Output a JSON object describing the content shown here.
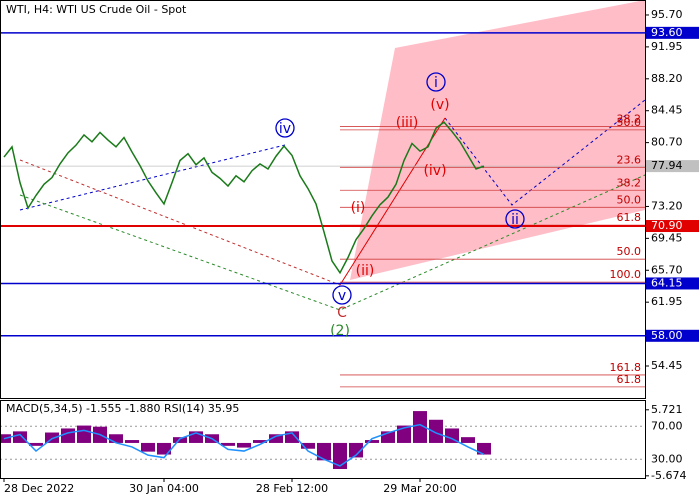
{
  "chart_data": [
    {
      "type": "line",
      "title": "WTI, H4:  WTI US Crude Oil - Spot",
      "categories": [
        "28 Dec 2022",
        null,
        null,
        null,
        null,
        null,
        null,
        null,
        null,
        null,
        null,
        null,
        null,
        null,
        null,
        null,
        null,
        null,
        null,
        null,
        "30 Jan 04:00",
        null,
        null,
        null,
        null,
        null,
        null,
        null,
        null,
        null,
        null,
        null,
        null,
        null,
        null,
        null,
        "28 Feb 12:00",
        null,
        null,
        null,
        null,
        null,
        null,
        null,
        null,
        null,
        null,
        null,
        null,
        null,
        null,
        null,
        "29 Mar 20:00",
        null,
        null,
        null,
        null,
        null,
        null,
        null,
        null
      ],
      "values": [
        79.0,
        80.2,
        76.0,
        73.0,
        74.5,
        75.8,
        76.6,
        78.2,
        79.5,
        80.4,
        81.6,
        80.8,
        81.9,
        81.0,
        80.2,
        81.3,
        79.6,
        78.0,
        76.2,
        74.8,
        73.5,
        76.0,
        78.6,
        79.4,
        78.1,
        78.9,
        77.2,
        76.5,
        75.6,
        76.8,
        76.1,
        77.4,
        78.2,
        77.6,
        79.1,
        80.3,
        79.2,
        76.8,
        75.3,
        73.5,
        70.2,
        66.8,
        65.4,
        67.2,
        69.3,
        70.6,
        72.1,
        73.4,
        74.3,
        75.8,
        78.6,
        80.6,
        79.7,
        80.2,
        82.4,
        83.1,
        82.0,
        80.8,
        79.2,
        77.6,
        77.94
      ],
      "color": "#1a7a1a",
      "ylim": [
        50.69,
        97.46
      ],
      "yticks": [
        {
          "value": 95.7,
          "label": "95.70"
        },
        {
          "value": 91.95,
          "label": "91.95"
        },
        {
          "value": 88.2,
          "label": "88.20"
        },
        {
          "value": 84.45,
          "label": "84.45"
        },
        {
          "value": 80.7,
          "label": "80.70"
        },
        {
          "value": 73.2,
          "label": "73.20"
        },
        {
          "value": 69.45,
          "label": "69.45"
        },
        {
          "value": 65.7,
          "label": "65.70"
        },
        {
          "value": 61.95,
          "label": "61.95"
        },
        {
          "value": 54.45,
          "label": "54.45"
        }
      ],
      "levels": [
        {
          "value": 93.6,
          "label": "93.60",
          "color": "#0000cc"
        },
        {
          "value": 77.94,
          "label": "77.94",
          "color": "#c0c0c0"
        },
        {
          "value": 70.9,
          "label": "70.90",
          "color": "#e00000"
        },
        {
          "value": 64.15,
          "label": "64.15",
          "color": "#0000cc"
        },
        {
          "value": 58.0,
          "label": "58.00",
          "color": "#0000cc"
        }
      ],
      "fib_levels": [
        {
          "label": "38.2",
          "price": 82.6
        },
        {
          "label": "50.0",
          "price": 82.2
        },
        {
          "label": "23.6",
          "price": 77.8
        },
        {
          "label": "38.2",
          "price": 75.1
        },
        {
          "label": "50.0",
          "price": 73.1
        },
        {
          "label": "61.8",
          "price": 71.0
        },
        {
          "label": "50.0",
          "price": 67.0
        },
        {
          "label": "100.0",
          "price": 64.3
        },
        {
          "label": "161.8",
          "price": 53.4
        },
        {
          "label": "61.8",
          "price": 52.0
        }
      ],
      "wave_labels": [
        "iv",
        "v",
        "C",
        "(2)",
        "(i)",
        "(ii)",
        "(iii)",
        "(iv)",
        "(v)",
        "i",
        "ii"
      ]
    },
    {
      "type": "bar",
      "title": "MACD(5,34,5) -1.555 -1.880 RSI(14) 35.95",
      "ylim": [
        -6.05,
        7.24
      ],
      "yticks": [
        5.721,
        -5.674
      ],
      "y2lim": [
        7.33,
        100.67
      ],
      "y2ticks": [
        {
          "value": 70,
          "label": "70.00"
        },
        {
          "value": 30,
          "label": "30.00"
        }
      ],
      "series": [
        {
          "color": "#800080",
          "values": [
            1.5,
            2.0,
            -0.5,
            1.8,
            2.5,
            3.0,
            2.8,
            1.5,
            0.5,
            -1.5,
            -2.0,
            1.0,
            2.0,
            1.5,
            -0.5,
            -0.8,
            0.5,
            1.5,
            2.0,
            -1.0,
            -3.0,
            -4.5,
            -2.5,
            0.5,
            2.0,
            3.0,
            5.5,
            4.0,
            2.5,
            1.0,
            -2.0
          ]
        },
        {
          "color": "#1e90ff",
          "axis": "y2",
          "values": [
            55,
            60,
            40,
            55,
            62,
            65,
            60,
            50,
            45,
            35,
            32,
            55,
            62,
            55,
            42,
            40,
            48,
            58,
            62,
            40,
            30,
            22,
            35,
            55,
            62,
            68,
            72,
            62,
            55,
            45,
            35.95
          ]
        }
      ]
    }
  ]
}
